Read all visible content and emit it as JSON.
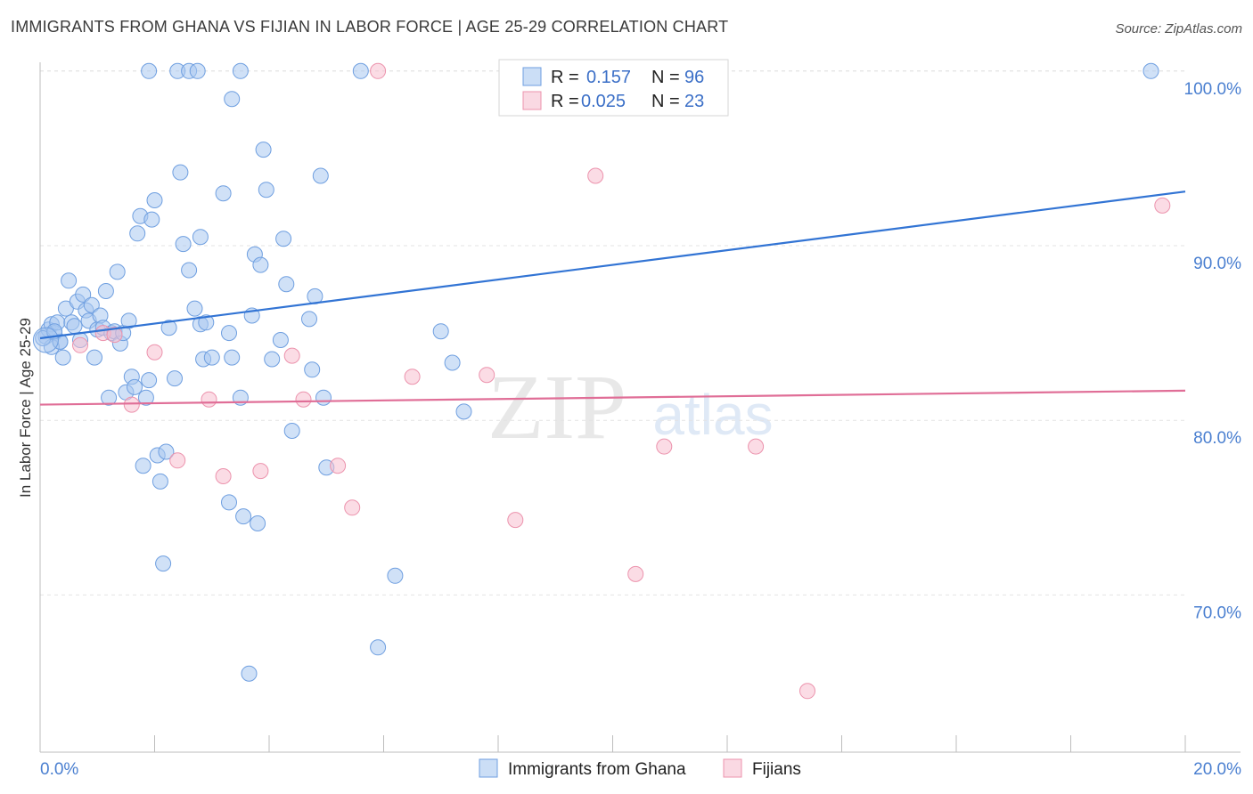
{
  "title": "IMMIGRANTS FROM GHANA VS FIJIAN IN LABOR FORCE | AGE 25-29 CORRELATION CHART",
  "source": "Source: ZipAtlas.com",
  "watermark": {
    "zip": "ZIP",
    "atlas": "atlas"
  },
  "colors": {
    "blue_fill": "#a9c8f0",
    "blue_stroke": "#6f9fe0",
    "blue_line": "#3274d4",
    "pink_fill": "#f7bfd0",
    "pink_stroke": "#ec93ad",
    "pink_line": "#e06e97",
    "grid": "#e3e3e3",
    "tick_text": "#4a7fd0"
  },
  "legend": {
    "rows": [
      {
        "r_label": "R =",
        "r_value": "0.157",
        "n_label": "N =",
        "n_value": "96"
      },
      {
        "r_label": "R =",
        "r_value": "0.025",
        "n_label": "N =",
        "n_value": "23"
      }
    ]
  },
  "chart_data": {
    "type": "scatter",
    "title": "IMMIGRANTS FROM GHANA VS FIJIAN IN LABOR FORCE | AGE 25-29 CORRELATION CHART",
    "xlabel": "",
    "ylabel": "In Labor Force | Age 25-29",
    "xlim": [
      0,
      20
    ],
    "ylim": [
      61,
      100.5
    ],
    "x_tick_labels": [
      "0.0%",
      "20.0%"
    ],
    "y_ticks": [
      70,
      80,
      90,
      100
    ],
    "y_tick_labels": [
      "70.0%",
      "80.0%",
      "90.0%",
      "100.0%"
    ],
    "grid": true,
    "series": [
      {
        "name": "Immigrants from Ghana",
        "color": "#6f9fe0",
        "R": 0.157,
        "N": 96,
        "trend": {
          "x": [
            0,
            20
          ],
          "y": [
            84.7,
            93.1
          ]
        },
        "points": [
          [
            0.1,
            84.8
          ],
          [
            0.15,
            85.2
          ],
          [
            0.2,
            85.5
          ],
          [
            0.25,
            85.0
          ],
          [
            0.3,
            85.6
          ],
          [
            0.35,
            84.5
          ],
          [
            0.4,
            83.6
          ],
          [
            0.45,
            86.4
          ],
          [
            0.5,
            88.0
          ],
          [
            0.55,
            85.6
          ],
          [
            0.6,
            85.4
          ],
          [
            0.65,
            86.8
          ],
          [
            0.7,
            84.6
          ],
          [
            0.75,
            87.2
          ],
          [
            0.8,
            86.3
          ],
          [
            0.85,
            85.7
          ],
          [
            0.9,
            86.6
          ],
          [
            0.95,
            83.6
          ],
          [
            1.0,
            85.2
          ],
          [
            1.05,
            86.0
          ],
          [
            1.1,
            85.3
          ],
          [
            1.15,
            87.4
          ],
          [
            1.2,
            81.3
          ],
          [
            1.25,
            85.0
          ],
          [
            1.3,
            85.1
          ],
          [
            1.35,
            88.5
          ],
          [
            1.4,
            84.4
          ],
          [
            1.45,
            85.0
          ],
          [
            1.5,
            81.6
          ],
          [
            1.55,
            85.7
          ],
          [
            1.6,
            82.5
          ],
          [
            1.65,
            81.9
          ],
          [
            1.7,
            90.7
          ],
          [
            1.75,
            91.7
          ],
          [
            1.8,
            77.4
          ],
          [
            1.85,
            81.3
          ],
          [
            1.9,
            82.3
          ],
          [
            1.95,
            91.5
          ],
          [
            2.0,
            92.6
          ],
          [
            2.05,
            78.0
          ],
          [
            2.1,
            76.5
          ],
          [
            2.15,
            71.8
          ],
          [
            2.2,
            78.2
          ],
          [
            2.25,
            85.3
          ],
          [
            2.35,
            82.4
          ],
          [
            2.45,
            94.2
          ],
          [
            2.5,
            90.1
          ],
          [
            2.6,
            88.6
          ],
          [
            2.7,
            86.4
          ],
          [
            2.8,
            85.5
          ],
          [
            2.85,
            83.5
          ],
          [
            2.9,
            85.6
          ],
          [
            3.0,
            83.6
          ],
          [
            3.2,
            93.0
          ],
          [
            3.3,
            75.3
          ],
          [
            3.35,
            83.6
          ],
          [
            3.5,
            81.3
          ],
          [
            3.55,
            74.5
          ],
          [
            3.65,
            65.5
          ],
          [
            3.7,
            86.0
          ],
          [
            3.75,
            89.5
          ],
          [
            3.8,
            74.1
          ],
          [
            3.85,
            88.9
          ],
          [
            3.9,
            95.5
          ],
          [
            3.95,
            93.2
          ],
          [
            4.05,
            83.5
          ],
          [
            4.2,
            84.6
          ],
          [
            4.25,
            90.4
          ],
          [
            4.3,
            87.8
          ],
          [
            4.4,
            79.4
          ],
          [
            4.7,
            85.8
          ],
          [
            4.75,
            82.9
          ],
          [
            4.8,
            87.1
          ],
          [
            4.9,
            94.0
          ],
          [
            4.95,
            81.3
          ],
          [
            5.0,
            77.3
          ],
          [
            5.6,
            100.0
          ],
          [
            5.9,
            67.0
          ],
          [
            6.2,
            71.1
          ],
          [
            7.0,
            85.1
          ],
          [
            7.2,
            83.3
          ],
          [
            7.4,
            80.5
          ],
          [
            8.3,
            100.0
          ],
          [
            19.4,
            100.0
          ],
          [
            1.9,
            100.0
          ],
          [
            2.4,
            100.0
          ],
          [
            2.6,
            100.0
          ],
          [
            2.75,
            100.0
          ],
          [
            3.5,
            100.0
          ],
          [
            3.35,
            98.4
          ],
          [
            0.2,
            84.2
          ],
          [
            0.35,
            84.5
          ],
          [
            2.8,
            90.5
          ],
          [
            0.05,
            84.7
          ],
          [
            0.25,
            85.1
          ],
          [
            3.3,
            85.0
          ]
        ]
      },
      {
        "name": "Fijians",
        "color": "#ec93ad",
        "R": 0.025,
        "N": 23,
        "trend": {
          "x": [
            0,
            20
          ],
          "y": [
            80.9,
            81.7
          ]
        },
        "points": [
          [
            0.7,
            84.3
          ],
          [
            1.1,
            85.0
          ],
          [
            1.6,
            80.9
          ],
          [
            2.0,
            83.9
          ],
          [
            2.4,
            77.7
          ],
          [
            2.95,
            81.2
          ],
          [
            3.2,
            76.8
          ],
          [
            3.85,
            77.1
          ],
          [
            4.4,
            83.7
          ],
          [
            4.6,
            81.2
          ],
          [
            5.2,
            77.4
          ],
          [
            5.45,
            75.0
          ],
          [
            5.9,
            100.0
          ],
          [
            6.5,
            82.5
          ],
          [
            7.8,
            82.6
          ],
          [
            8.3,
            74.3
          ],
          [
            9.7,
            94.0
          ],
          [
            10.4,
            71.2
          ],
          [
            10.9,
            78.5
          ],
          [
            12.5,
            78.5
          ],
          [
            13.4,
            64.5
          ],
          [
            19.6,
            92.3
          ],
          [
            1.3,
            84.9
          ]
        ]
      }
    ]
  },
  "bottom_legend": {
    "items": [
      {
        "label": "Immigrants from Ghana"
      },
      {
        "label": "Fijians"
      }
    ]
  }
}
